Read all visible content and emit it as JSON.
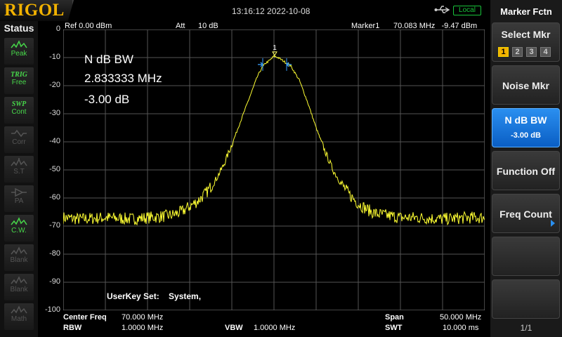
{
  "brand": "RIGOL",
  "datetime": "13:16:12 2022-10-08",
  "remote_badge": "Local",
  "status": {
    "title": "Status",
    "items": [
      {
        "label": "Peak",
        "icon": "peak-icon",
        "state": "on"
      },
      {
        "label_top": "TRIG",
        "label": "Free",
        "icon": "trig-icon",
        "state": "on"
      },
      {
        "label_top": "SWP",
        "label": "Cont",
        "icon": "sweep-icon",
        "state": "on"
      },
      {
        "label": "Corr",
        "icon": "correction-icon",
        "state": "off"
      },
      {
        "label": "S.T",
        "icon": "signal-track-icon",
        "state": "off"
      },
      {
        "label": "PA",
        "icon": "preamp-icon",
        "state": "off"
      },
      {
        "label": "C.W.",
        "icon": "cw-icon",
        "state": "on"
      },
      {
        "label": "Blank",
        "icon": "blank-icon",
        "state": "off"
      },
      {
        "label": "Blank",
        "icon": "blank-icon",
        "state": "off"
      },
      {
        "label": "Math",
        "icon": "math-icon",
        "state": "off"
      }
    ]
  },
  "header": {
    "ref": "Ref  0.00 dBm",
    "att_label": "Att",
    "att_value": "10 dB",
    "marker_label": "Marker1",
    "marker_value": "70.083 MHz   -9.47 dBm"
  },
  "annotation": {
    "mode": "N dB BW",
    "bandwidth": "2.833333 MHz",
    "ndb": "-3.00 dB",
    "marker_number": "1"
  },
  "userkey": "UserKey Set:    System,",
  "footer": {
    "center_label": "Center Freq",
    "center_value": "70.000 MHz",
    "rbw_label": "RBW",
    "rbw_value": "1.0000 MHz",
    "vbw_label": "VBW",
    "vbw_value": "1.0000 MHz",
    "span_label": "Span",
    "span_value": "50.000 MHz",
    "swt_label": "SWT",
    "swt_value": "10.000 ms"
  },
  "menu": {
    "title": "Marker Fctn",
    "select_mkr": "Select Mkr",
    "markers": [
      "1",
      "2",
      "3",
      "4"
    ],
    "active_marker": "1",
    "noise_mkr": "Noise Mkr",
    "ndb_bw": "N dB BW",
    "ndb_bw_value": "-3.00 dB",
    "function_off": "Function Off",
    "freq_count": "Freq Count",
    "page": "1/1"
  },
  "colors": {
    "trace": "#ffff33",
    "accent": "#0a6fd8",
    "brand": "#f2b200",
    "status_on": "#47d84a"
  },
  "chart_data": {
    "type": "line",
    "title": "",
    "xlabel": "",
    "ylabel": "",
    "x_unit": "MHz",
    "x_range": [
      45.0,
      95.0
    ],
    "y_unit": "dBm",
    "ylim": [
      -100,
      0
    ],
    "y_ticks": [
      "0",
      "-10",
      "-20",
      "-30",
      "-40",
      "-50",
      "-60",
      "-70",
      "-80",
      "-90",
      "-100"
    ],
    "grid": true,
    "series": [
      {
        "x": [
          45,
          47,
          50,
          53,
          55,
          57,
          58,
          59,
          60,
          61,
          62,
          63,
          64,
          65,
          66,
          67,
          68,
          68.5,
          69,
          69.5,
          70,
          70.5,
          71,
          71.5,
          72,
          73,
          74,
          75,
          76,
          77,
          78,
          79,
          80,
          81,
          82,
          83,
          85,
          87,
          90,
          93,
          95
        ],
        "y": [
          -67,
          -67.5,
          -67,
          -67.5,
          -67,
          -66.5,
          -66,
          -65,
          -63,
          -61,
          -58,
          -54,
          -48.5,
          -41,
          -33,
          -25,
          -17,
          -14,
          -12,
          -11,
          -9.5,
          -10,
          -11,
          -12,
          -13,
          -18,
          -26,
          -35,
          -43,
          -50,
          -55,
          -59,
          -62,
          -64,
          -65.5,
          -66,
          -67,
          -67,
          -67.5,
          -67,
          -67
        ]
      }
    ],
    "marker": {
      "x": 70.083,
      "y": -9.47,
      "label": "1"
    },
    "ndb_bw_mhz": 2.833333
  }
}
